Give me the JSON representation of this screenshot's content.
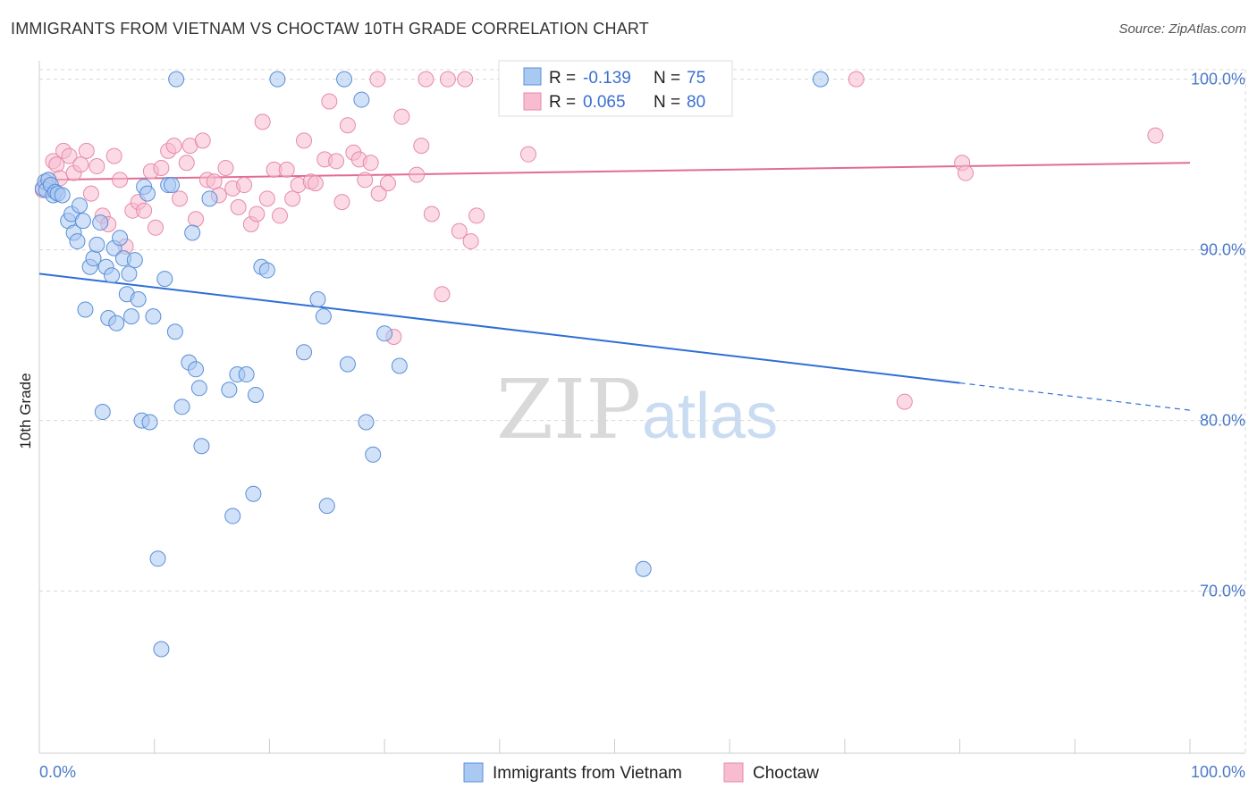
{
  "title": "IMMIGRANTS FROM VIETNAM VS CHOCTAW 10TH GRADE CORRELATION CHART",
  "source": "Source: ZipAtlas.com",
  "watermark": {
    "zip": "ZIP",
    "atlas": "atlas"
  },
  "colors": {
    "series1_fill": "#a9c8f2",
    "series1_stroke": "#5a8fd8",
    "series1_line": "#2f6fd6",
    "series2_fill": "#f7bcd0",
    "series2_stroke": "#e68aaa",
    "series2_line": "#e26b94",
    "tick_text": "#4a79c8",
    "grid": "#d8d8d8"
  },
  "legend_top": {
    "rows": [
      {
        "r_label": "R = ",
        "r_value": "-0.139",
        "n_label": "N = ",
        "n_value": "75"
      },
      {
        "r_label": "R = ",
        "r_value": "0.065",
        "n_label": "N = ",
        "n_value": "80"
      }
    ]
  },
  "legend_bottom": [
    "Immigrants from Vietnam",
    "Choctaw"
  ],
  "chart_data": {
    "type": "scatter",
    "title": "IMMIGRANTS FROM VIETNAM VS CHOCTAW 10TH GRADE CORRELATION CHART",
    "xlabel": "",
    "ylabel": "10th Grade",
    "xlim": [
      0,
      100
    ],
    "ylim": [
      60.5,
      101.5
    ],
    "x_tick_labels": [
      "0.0%",
      "100.0%"
    ],
    "y_ticks": [
      70,
      80,
      90,
      100
    ],
    "y_tick_labels": [
      "70.0%",
      "80.0%",
      "90.0%",
      "100.0%"
    ],
    "grid": true,
    "series": [
      {
        "name": "Immigrants from Vietnam",
        "R": -0.139,
        "N": 75,
        "trend": {
          "x0": 0,
          "y0": 88.6,
          "x1": 80,
          "y1": 82.2,
          "dash_to_x": 100,
          "dash_to_y": 80.6
        },
        "points": [
          [
            0.3,
            93.6
          ],
          [
            0.5,
            94.0
          ],
          [
            0.6,
            93.5
          ],
          [
            0.8,
            94.1
          ],
          [
            1.0,
            93.8
          ],
          [
            1.2,
            93.2
          ],
          [
            1.4,
            93.4
          ],
          [
            1.6,
            93.3
          ],
          [
            2.0,
            93.2
          ],
          [
            2.5,
            91.7
          ],
          [
            2.8,
            92.1
          ],
          [
            3.0,
            91.0
          ],
          [
            3.3,
            90.5
          ],
          [
            3.5,
            92.6
          ],
          [
            3.8,
            91.7
          ],
          [
            4.0,
            86.5
          ],
          [
            4.4,
            89.0
          ],
          [
            4.7,
            89.5
          ],
          [
            5.0,
            90.3
          ],
          [
            5.3,
            91.6
          ],
          [
            5.5,
            80.5
          ],
          [
            5.8,
            89.0
          ],
          [
            6.0,
            86.0
          ],
          [
            6.3,
            88.5
          ],
          [
            6.5,
            90.1
          ],
          [
            6.7,
            85.7
          ],
          [
            7.0,
            90.7
          ],
          [
            7.3,
            89.5
          ],
          [
            7.6,
            87.4
          ],
          [
            7.8,
            88.6
          ],
          [
            8.0,
            86.1
          ],
          [
            8.3,
            89.4
          ],
          [
            8.6,
            87.1
          ],
          [
            8.9,
            80.0
          ],
          [
            9.1,
            93.7
          ],
          [
            9.4,
            93.3
          ],
          [
            9.6,
            79.9
          ],
          [
            9.9,
            86.1
          ],
          [
            10.3,
            71.9
          ],
          [
            10.6,
            66.6
          ],
          [
            10.9,
            88.3
          ],
          [
            11.2,
            93.8
          ],
          [
            11.5,
            93.8
          ],
          [
            11.8,
            85.2
          ],
          [
            11.9,
            100.0
          ],
          [
            12.4,
            80.8
          ],
          [
            13.0,
            83.4
          ],
          [
            13.3,
            91.0
          ],
          [
            13.6,
            83.0
          ],
          [
            13.9,
            81.9
          ],
          [
            14.1,
            78.5
          ],
          [
            14.8,
            93.0
          ],
          [
            16.5,
            81.8
          ],
          [
            17.2,
            82.7
          ],
          [
            18.0,
            82.7
          ],
          [
            16.8,
            74.4
          ],
          [
            18.6,
            75.7
          ],
          [
            18.8,
            81.5
          ],
          [
            19.3,
            89.0
          ],
          [
            19.8,
            88.8
          ],
          [
            20.7,
            100.0
          ],
          [
            23.0,
            84.0
          ],
          [
            24.2,
            87.1
          ],
          [
            24.7,
            86.1
          ],
          [
            25.0,
            75.0
          ],
          [
            26.5,
            100.0
          ],
          [
            26.8,
            83.3
          ],
          [
            28.0,
            98.8
          ],
          [
            28.4,
            79.9
          ],
          [
            29.0,
            78.0
          ],
          [
            30.0,
            85.1
          ],
          [
            31.3,
            83.2
          ],
          [
            43.0,
            100.0
          ],
          [
            52.5,
            71.3
          ],
          [
            67.9,
            100.0
          ]
        ]
      },
      {
        "name": "Choctaw",
        "R": 0.065,
        "N": 80,
        "trend": {
          "x0": 0,
          "y0": 94.1,
          "x1": 100,
          "y1": 95.1
        },
        "points": [
          [
            0.3,
            93.5
          ],
          [
            0.8,
            94.1
          ],
          [
            1.2,
            95.2
          ],
          [
            1.5,
            95.0
          ],
          [
            1.8,
            94.2
          ],
          [
            2.1,
            95.8
          ],
          [
            2.6,
            95.5
          ],
          [
            3.0,
            94.5
          ],
          [
            3.6,
            95.0
          ],
          [
            4.1,
            95.8
          ],
          [
            4.5,
            93.3
          ],
          [
            5.0,
            94.9
          ],
          [
            5.5,
            92.0
          ],
          [
            6.0,
            91.5
          ],
          [
            6.5,
            95.5
          ],
          [
            7.0,
            94.1
          ],
          [
            7.5,
            90.2
          ],
          [
            8.1,
            92.3
          ],
          [
            8.6,
            92.8
          ],
          [
            9.1,
            92.3
          ],
          [
            9.7,
            94.6
          ],
          [
            10.1,
            91.3
          ],
          [
            10.6,
            94.8
          ],
          [
            11.2,
            95.8
          ],
          [
            11.7,
            96.1
          ],
          [
            12.2,
            93.0
          ],
          [
            12.8,
            95.1
          ],
          [
            13.1,
            96.1
          ],
          [
            13.6,
            91.8
          ],
          [
            14.2,
            96.4
          ],
          [
            14.6,
            94.1
          ],
          [
            15.2,
            94.0
          ],
          [
            15.6,
            93.2
          ],
          [
            16.2,
            94.8
          ],
          [
            16.8,
            93.6
          ],
          [
            17.3,
            92.5
          ],
          [
            17.8,
            93.8
          ],
          [
            18.4,
            91.5
          ],
          [
            18.9,
            92.1
          ],
          [
            19.4,
            97.5
          ],
          [
            19.8,
            93.0
          ],
          [
            20.4,
            94.7
          ],
          [
            20.9,
            92.0
          ],
          [
            21.5,
            94.7
          ],
          [
            22.0,
            93.0
          ],
          [
            22.5,
            93.8
          ],
          [
            23.0,
            96.4
          ],
          [
            23.6,
            94.0
          ],
          [
            24.0,
            93.9
          ],
          [
            24.8,
            95.3
          ],
          [
            25.2,
            98.7
          ],
          [
            25.8,
            95.2
          ],
          [
            26.3,
            92.8
          ],
          [
            26.8,
            97.3
          ],
          [
            27.3,
            95.7
          ],
          [
            27.8,
            95.3
          ],
          [
            28.3,
            94.1
          ],
          [
            28.8,
            95.1
          ],
          [
            29.5,
            93.3
          ],
          [
            30.3,
            93.9
          ],
          [
            30.8,
            84.9
          ],
          [
            31.5,
            97.8
          ],
          [
            32.8,
            94.4
          ],
          [
            33.2,
            96.1
          ],
          [
            33.6,
            100.0
          ],
          [
            34.1,
            92.1
          ],
          [
            35.0,
            87.4
          ],
          [
            35.5,
            100.0
          ],
          [
            36.5,
            91.1
          ],
          [
            37.0,
            100.0
          ],
          [
            37.5,
            90.5
          ],
          [
            38.0,
            92.0
          ],
          [
            42.5,
            95.6
          ],
          [
            45.0,
            100.0
          ],
          [
            71.0,
            100.0
          ],
          [
            75.2,
            81.1
          ],
          [
            80.2,
            95.1
          ],
          [
            80.5,
            94.5
          ],
          [
            97.0,
            96.7
          ],
          [
            29.4,
            100.0
          ]
        ]
      }
    ]
  }
}
